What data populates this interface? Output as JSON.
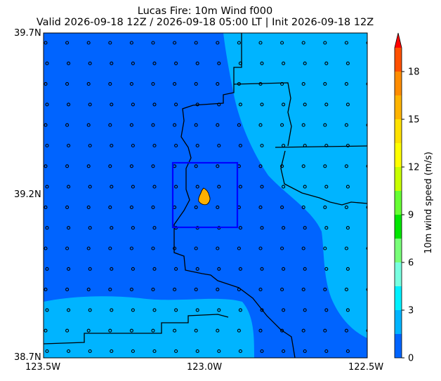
{
  "title": "Lucas Fire: 10m Wind f000",
  "subtitle": "Valid 2026-09-18 12Z / 2026-09-18 05:00 LT | Init 2026-09-18 12Z",
  "map": {
    "lat_ticks": [
      "39.7N",
      "39.2N",
      "38.7N"
    ],
    "lon_ticks": [
      "123.5W",
      "123.0W",
      "122.5W"
    ],
    "lat_range": [
      38.7,
      39.7
    ],
    "lon_range": [
      -123.5,
      -122.5
    ],
    "fire_box": {
      "lon": [
        -123.1,
        -122.9
      ],
      "lat": [
        39.1,
        39.3
      ],
      "color": "#0000ff"
    },
    "fire_marker_color": "#ffb000",
    "wind_station_marker": "small-circle"
  },
  "colorbar": {
    "label": "10m wind speed (m/s)",
    "ticks": [
      "0",
      "3",
      "6",
      "9",
      "12",
      "15",
      "18"
    ],
    "tick_values": [
      0,
      3,
      6,
      9,
      12,
      15,
      18
    ],
    "range": [
      0,
      19.5
    ],
    "extend": "max",
    "levels": [
      {
        "from": 0,
        "to": 1.5,
        "color": "#0064ff"
      },
      {
        "from": 1.5,
        "to": 3,
        "color": "#00b4ff"
      },
      {
        "from": 3,
        "to": 4.5,
        "color": "#00f0ff"
      },
      {
        "from": 4.5,
        "to": 6,
        "color": "#78ffe0"
      },
      {
        "from": 6,
        "to": 7.5,
        "color": "#78ff78"
      },
      {
        "from": 7.5,
        "to": 9,
        "color": "#00e600"
      },
      {
        "from": 9,
        "to": 10.5,
        "color": "#66ff33"
      },
      {
        "from": 10.5,
        "to": 12,
        "color": "#c8ff00"
      },
      {
        "from": 12,
        "to": 13.5,
        "color": "#ffff00"
      },
      {
        "from": 13.5,
        "to": 15,
        "color": "#ffe100"
      },
      {
        "from": 15,
        "to": 16.5,
        "color": "#ffb400"
      },
      {
        "from": 16.5,
        "to": 18,
        "color": "#ff8c00"
      },
      {
        "from": 18,
        "to": 19.5,
        "color": "#ff5000"
      }
    ],
    "extend_color": "#ff0000"
  },
  "wind_field_colors": {
    "calm": "#0064ff",
    "light": "#00b4ff"
  }
}
